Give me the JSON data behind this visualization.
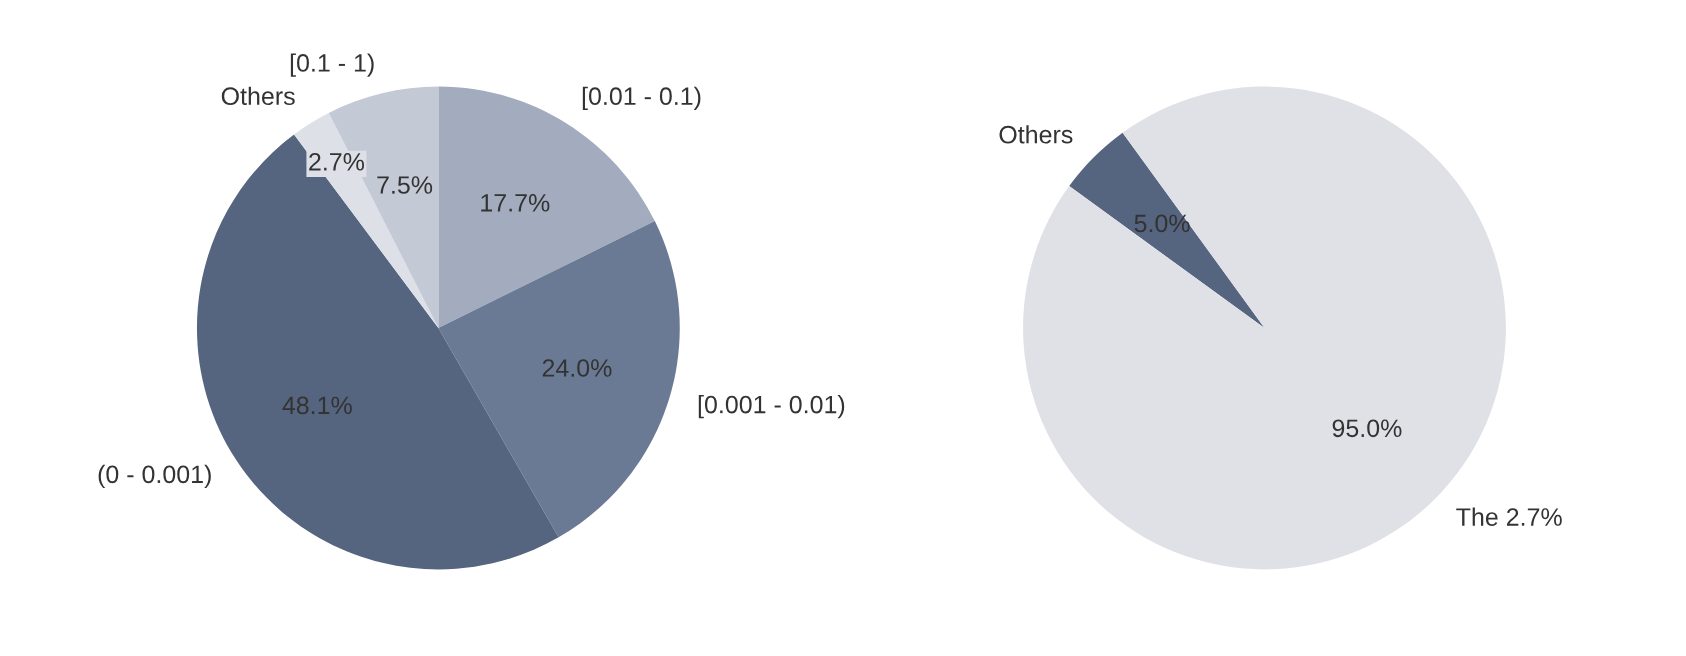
{
  "chart_data": [
    {
      "type": "pie",
      "categories": [
        "[0.01 - 0.1)",
        "[0.001 - 0.01)",
        "(0 - 0.001)",
        "Others",
        "[0.1 - 1)"
      ],
      "values": [
        17.7,
        24.0,
        48.1,
        2.7,
        7.5
      ],
      "value_labels": [
        "17.7%",
        "24.0%",
        "48.1%",
        "2.7%",
        "7.5%"
      ],
      "colors": [
        "#a3acbe",
        "#6b7a94",
        "#56657f",
        "#dde0e7",
        "#c4c9d6"
      ]
    },
    {
      "type": "pie",
      "categories": [
        "Others",
        "The 2.7%"
      ],
      "values": [
        5.0,
        95.0
      ],
      "value_labels": [
        "5.0%",
        "95.0%"
      ],
      "colors": [
        "#56657f",
        "#dfe1e7"
      ]
    }
  ]
}
